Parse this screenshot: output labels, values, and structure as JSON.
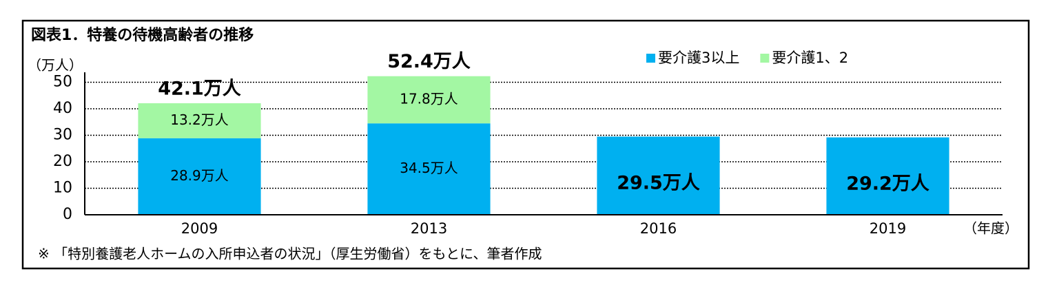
{
  "chart_data": {
    "type": "stacked_bar",
    "title": "図表1．特養の待機高齢者の推移",
    "y_label": "（万人）",
    "x_label": "（年度）",
    "note": "※ 「特別養護老人ホームの入所申込者の状況」（厚生労働省）をもとに、筆者作成",
    "categories": [
      "2009",
      "2013",
      "2016",
      "2019"
    ],
    "series": [
      {
        "name": "要介護3以上",
        "color": "#00b0f0",
        "values": [
          28.9,
          34.5,
          29.5,
          29.2
        ],
        "value_labels": [
          "28.9万人",
          "34.5万人",
          "29.5万人",
          "29.2万人"
        ]
      },
      {
        "name": "要介護1、2",
        "color": "#a3f7a3",
        "values": [
          13.2,
          17.8,
          null,
          null
        ],
        "value_labels": [
          "13.2万人",
          "17.8万人",
          null,
          null
        ]
      }
    ],
    "totals": {
      "values": [
        42.1,
        52.4,
        null,
        null
      ],
      "value_labels": [
        "42.1万人",
        "52.4万人",
        null,
        null
      ]
    },
    "ylim": [
      0,
      53
    ],
    "yticks": [
      0,
      10,
      20,
      30,
      40,
      50
    ],
    "grid": true,
    "legend": "top-right"
  }
}
